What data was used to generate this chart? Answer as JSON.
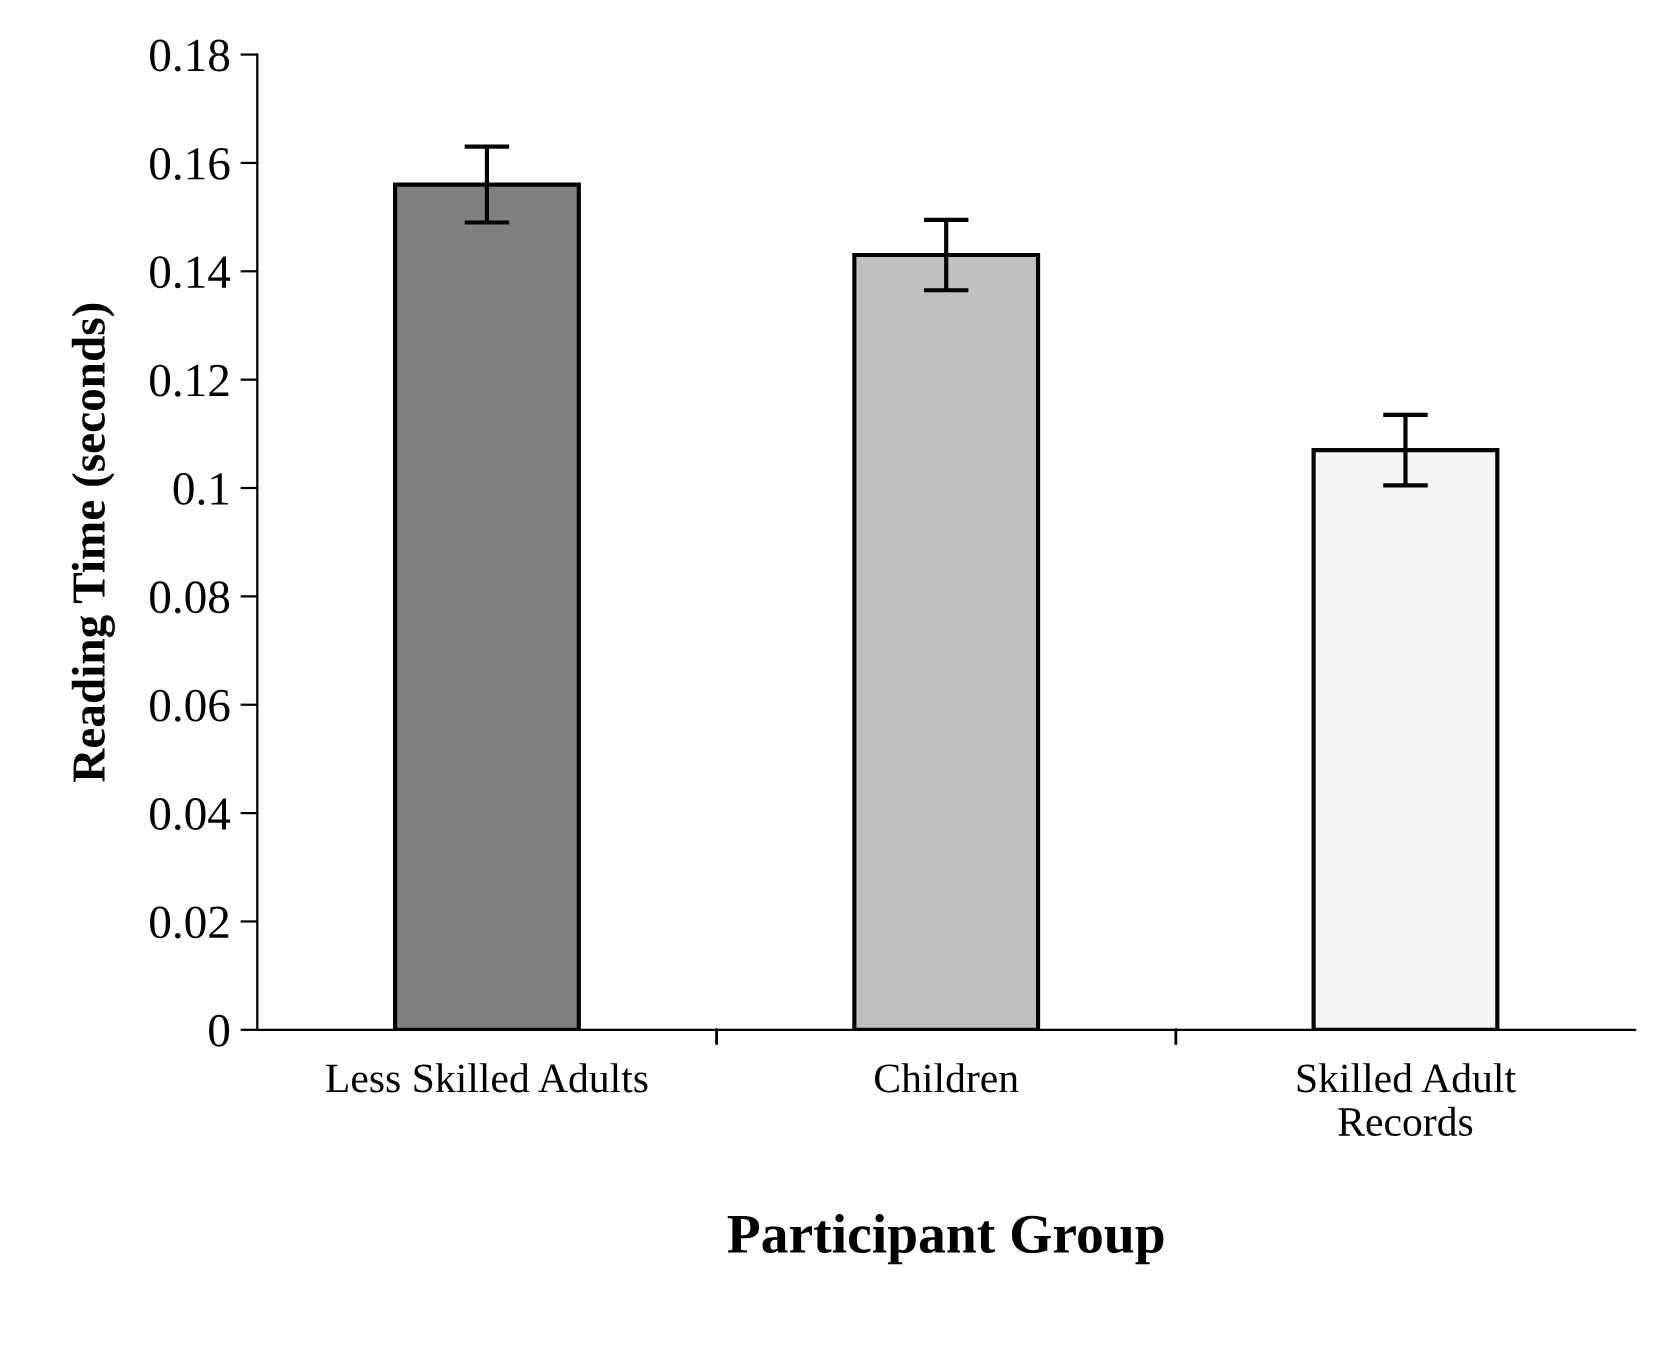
{
  "chart_data": {
    "type": "bar",
    "xlabel": "Participant Group",
    "ylabel": "Reading Time (seconds)",
    "categories": [
      "Less Skilled Adults",
      "Children",
      "Skilled Adult\nRecords"
    ],
    "values": [
      0.156,
      0.143,
      0.107
    ],
    "errors": [
      0.007,
      0.0065,
      0.0065
    ],
    "colors": [
      "#808080",
      "#c0c0c0",
      "#f4f4f4"
    ],
    "ylim": [
      0,
      0.18
    ],
    "yticks": [
      0,
      0.02,
      0.04,
      0.06,
      0.08,
      0.1,
      0.12,
      0.14,
      0.16,
      0.18
    ],
    "grid": false
  }
}
